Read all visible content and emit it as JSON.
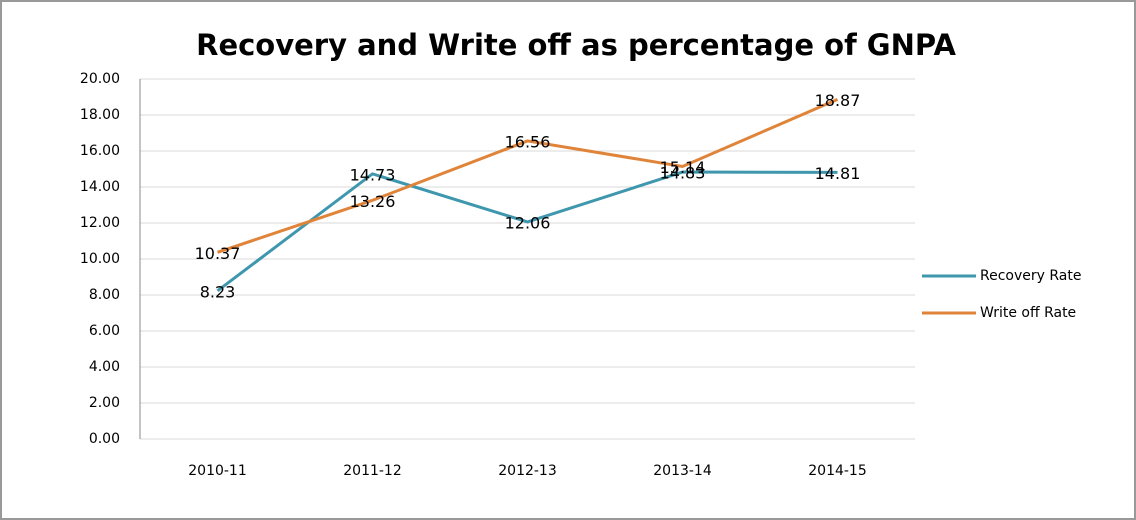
{
  "chart_data": {
    "type": "line",
    "title": "Recovery and Write off as percentage of GNPA",
    "categories": [
      "2010-11",
      "2011-12",
      "2012-13",
      "2013-14",
      "2014-15"
    ],
    "series": [
      {
        "name": "Recovery Rate",
        "color": "#3f97ae",
        "values": [
          8.23,
          14.73,
          12.06,
          14.83,
          14.81
        ]
      },
      {
        "name": "Write off Rate",
        "color": "#e0843a",
        "values": [
          10.37,
          13.26,
          16.56,
          15.14,
          18.87
        ]
      }
    ],
    "ylim": [
      0,
      20
    ],
    "yticks": [
      {
        "value": 0,
        "label": "0.00"
      },
      {
        "value": 2,
        "label": "2.00"
      },
      {
        "value": 4,
        "label": "4.00"
      },
      {
        "value": 6,
        "label": "6.00"
      },
      {
        "value": 8,
        "label": "8.00"
      },
      {
        "value": 10,
        "label": "10.00"
      },
      {
        "value": 12,
        "label": "12.00"
      },
      {
        "value": 14,
        "label": "14.00"
      },
      {
        "value": 16,
        "label": "16.00"
      },
      {
        "value": 18,
        "label": "18.00"
      },
      {
        "value": 20,
        "label": "20.00"
      }
    ],
    "grid": true,
    "legend": "right"
  }
}
